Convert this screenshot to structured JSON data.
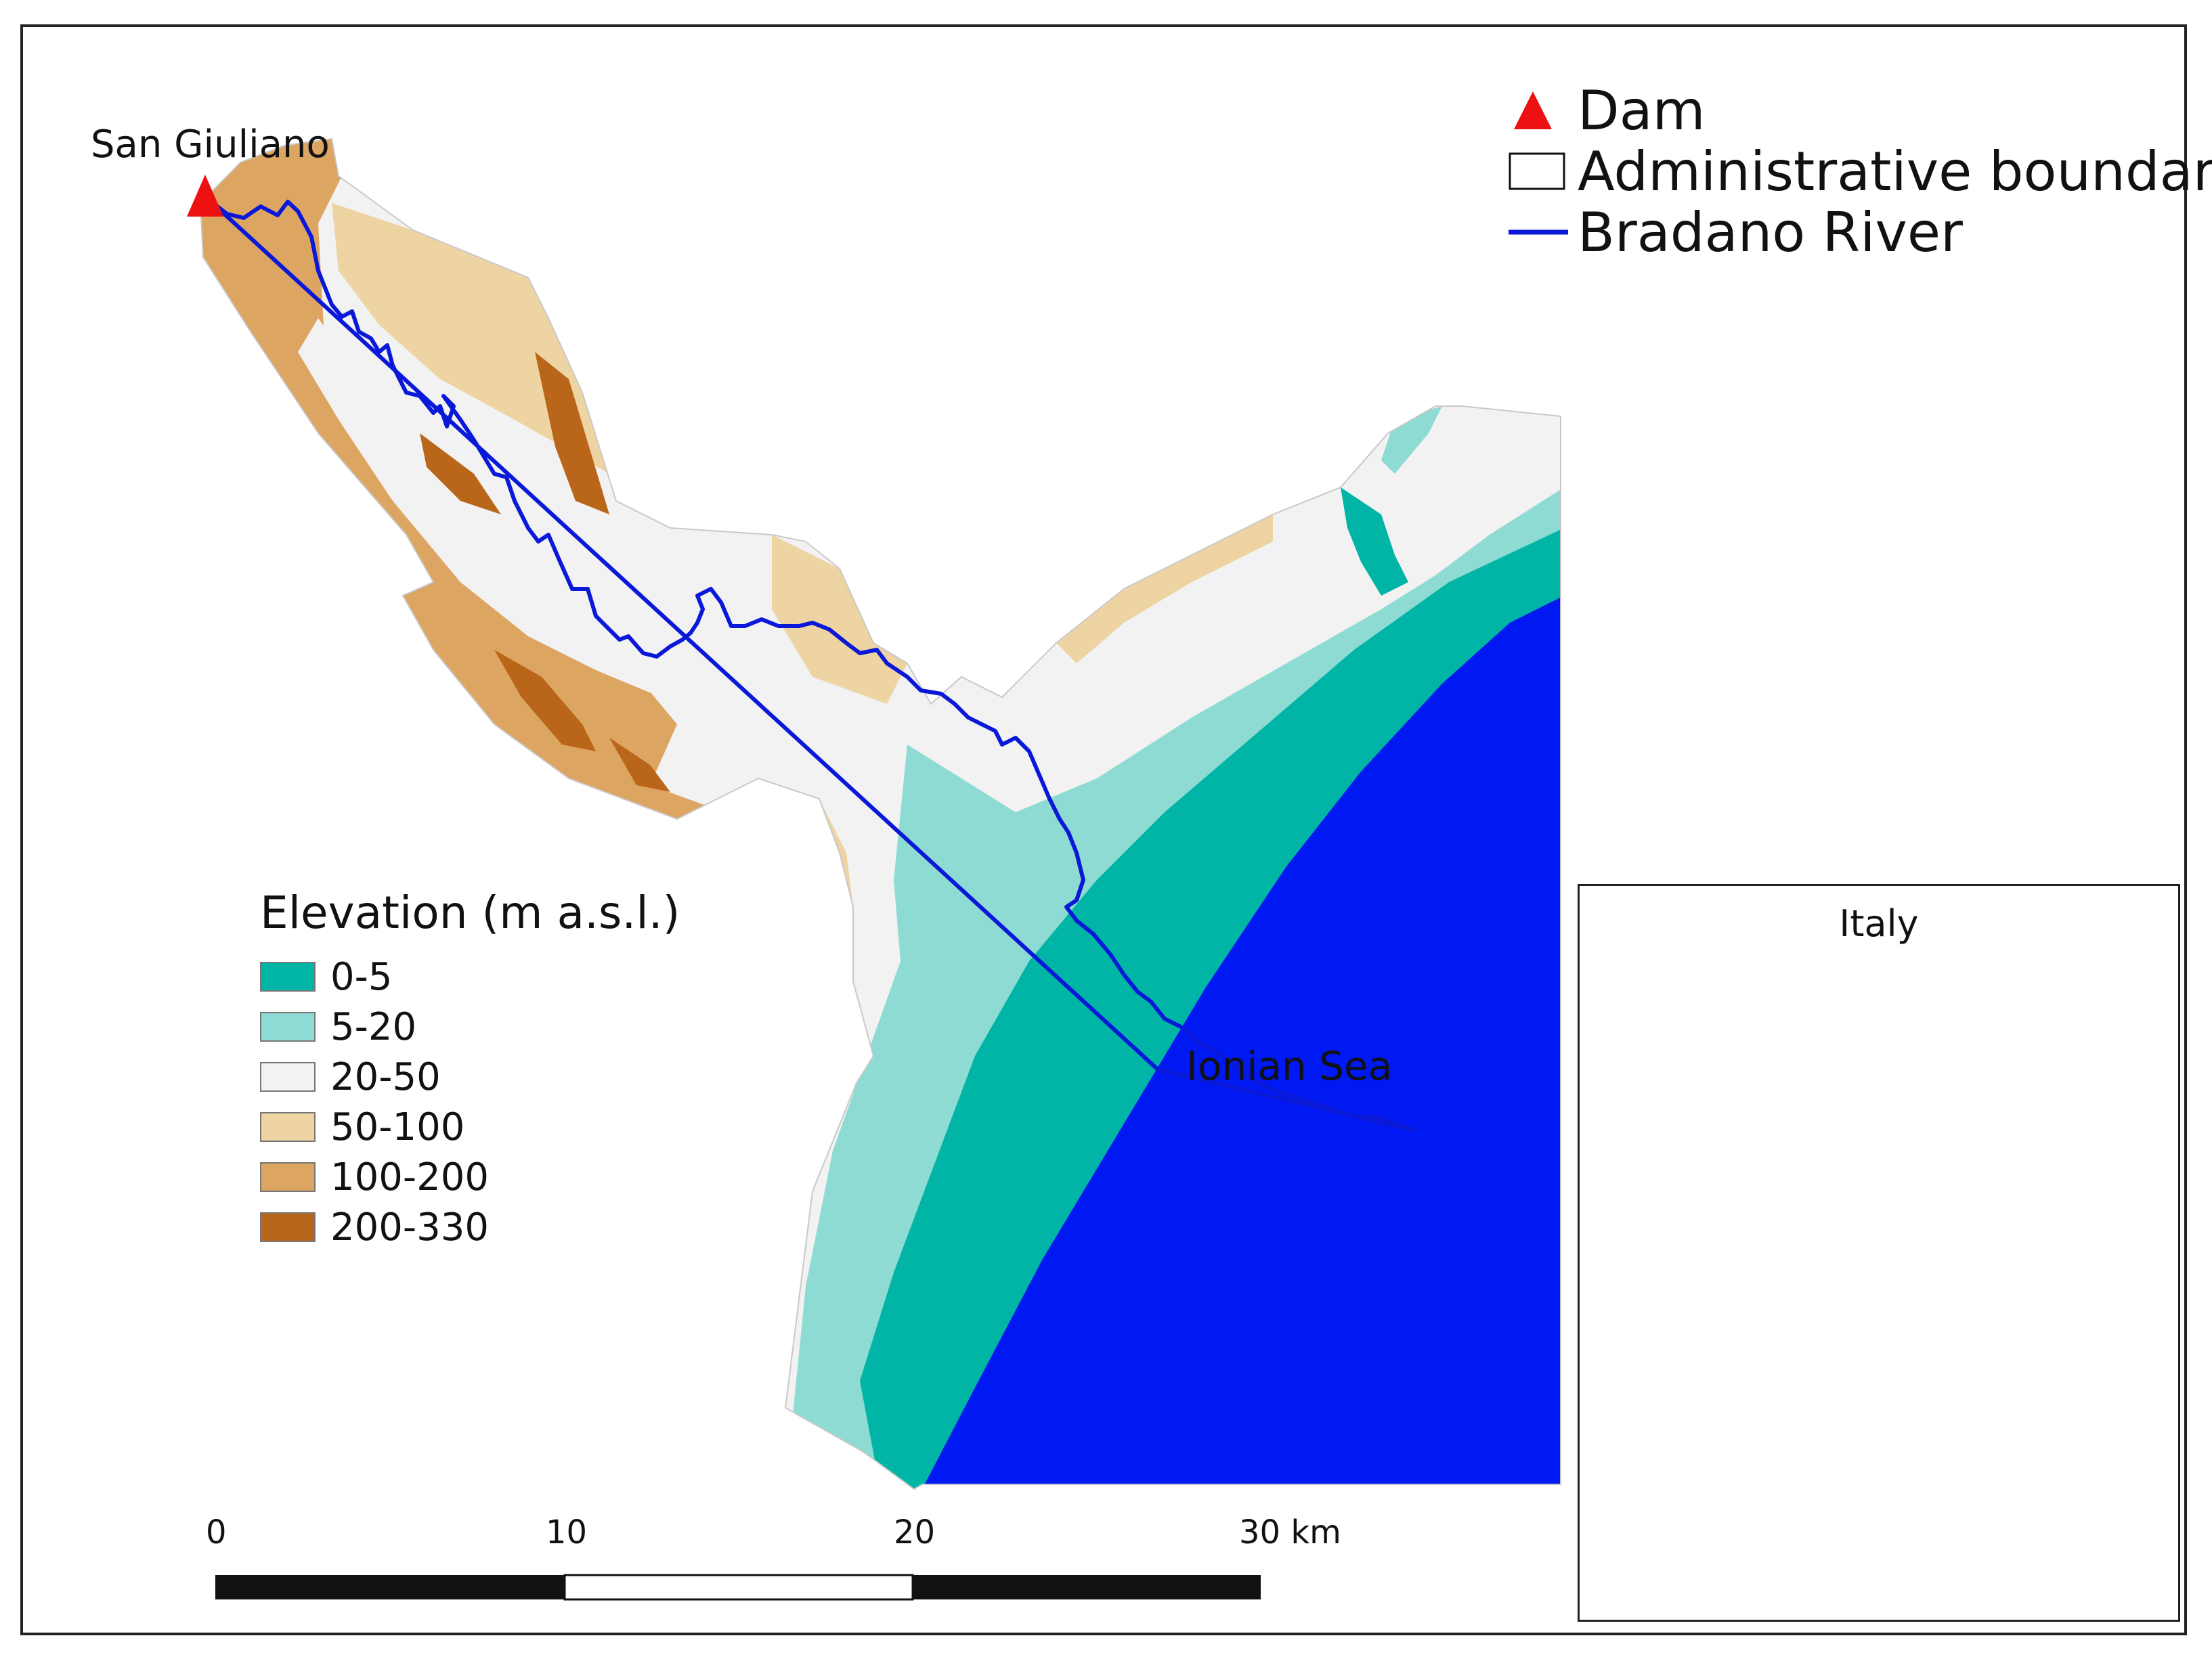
{
  "place_label": "San Giuliano",
  "sea_label": "Ionian Sea",
  "legend": {
    "dam": "Dam",
    "boundary": "Administrative boundary",
    "river": "Bradano River"
  },
  "elevation_legend": {
    "title": "Elevation (m a.s.l.)",
    "classes": [
      {
        "label": "0-5",
        "color": "#00b5a5"
      },
      {
        "label": "5-20",
        "color": "#8edbd3"
      },
      {
        "label": "20-50",
        "color": "#f2f2f2"
      },
      {
        "label": "50-100",
        "color": "#eed3a3"
      },
      {
        "label": "100-200",
        "color": "#dda562"
      },
      {
        "label": "200-330",
        "color": "#b9661a"
      }
    ]
  },
  "scale_bar": {
    "ticks": [
      "0",
      "10",
      "20",
      "30 km"
    ]
  },
  "inset": {
    "title": "Italy"
  },
  "colors": {
    "sea": "#0019f2",
    "river": "#0a18d8",
    "dam": "#ee1111",
    "study_area_box": "#1aa11a"
  }
}
